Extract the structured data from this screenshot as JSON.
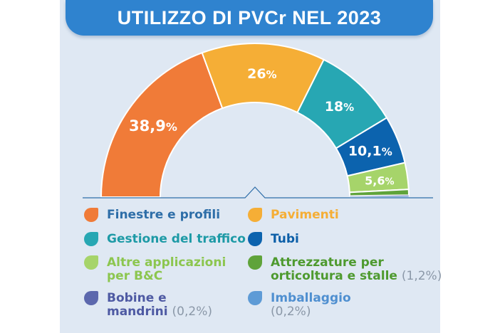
{
  "title": "UTILIZZO DI PVCr NEL 2023",
  "chart_data": {
    "type": "pie",
    "shape": "half-donut",
    "title": "UTILIZZO DI PVCr NEL 2023",
    "slices": [
      {
        "name": "Finestre e profili",
        "value": 38.9,
        "label": "38,9",
        "color": "#f07b38",
        "text_color": "#2e6ea8"
      },
      {
        "name": "Pavimenti",
        "value": 26,
        "label": "26",
        "color": "#f5ae36",
        "text_color": "#f5ae36"
      },
      {
        "name": "Gestione del traffico",
        "value": 18,
        "label": "18",
        "color": "#27a7b3",
        "text_color": "#1d9aa6"
      },
      {
        "name": "Tubi",
        "value": 10.1,
        "label": "10,1",
        "color": "#0c63ae",
        "text_color": "#0c5fa8"
      },
      {
        "name": "Altre applicazioni\nper B&C",
        "value": 5.6,
        "label": "5,6",
        "color": "#a6d46a",
        "text_color": "#8cc64f"
      },
      {
        "name": "Attrezzature per\norticoltura e stalle",
        "value": 1.2,
        "label": "",
        "note": "(1,2%)",
        "color": "#5fa33a",
        "text_color": "#4e9a2f"
      },
      {
        "name": "Bobine e\nmandrini",
        "value": 0.2,
        "label": "",
        "note": "(0,2%)",
        "color": "#5c68ad",
        "text_color": "#4e5aa3"
      },
      {
        "name": "Imballaggio",
        "value": 0.2,
        "label": "",
        "note": "(0,2%)",
        "color": "#5e9bd6",
        "text_color": "#4f8fd0"
      }
    ],
    "percent_sign": "%"
  }
}
